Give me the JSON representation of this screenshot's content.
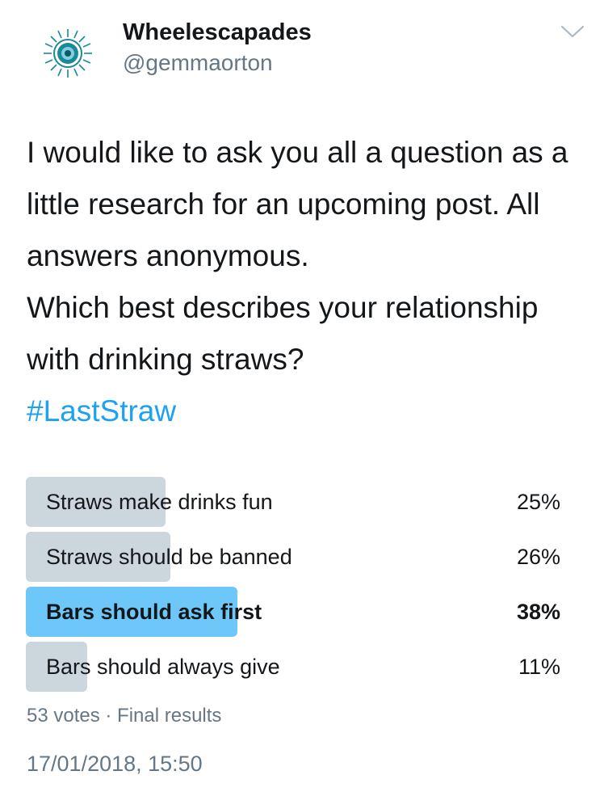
{
  "author": {
    "display_name": "Wheelescapades",
    "handle": "@gemmaorton",
    "avatar_icon": "circular-seal-logo-avatar",
    "avatar_color": "#1a8a9a"
  },
  "menu": {
    "icon": "chevron-down-icon",
    "color": "#aab8c2"
  },
  "tweet": {
    "line1": "I would like to ask you all a question as a little research for an upcoming post. All answers anonymous.",
    "line2": "Which best describes your relationship with drinking straws?",
    "hashtag": "#LastStraw"
  },
  "poll": {
    "options": [
      {
        "label": "Straws make drinks fun",
        "percent": "25%",
        "value": 25,
        "winner": false
      },
      {
        "label": "Straws should be banned",
        "percent": "26%",
        "value": 26,
        "winner": false
      },
      {
        "label": "Bars should ask first",
        "percent": "38%",
        "value": 38,
        "winner": true
      },
      {
        "label": "Bars should always give",
        "percent": "11%",
        "value": 11,
        "winner": false
      }
    ],
    "meta": "53 votes · Final results",
    "bar_color": "#ccd6dd",
    "winner_color": "#6dc7f8"
  },
  "timestamp": "17/01/2018, 15:50",
  "colors": {
    "text": "#14171a",
    "secondary": "#657786",
    "link": "#1da1f2"
  }
}
